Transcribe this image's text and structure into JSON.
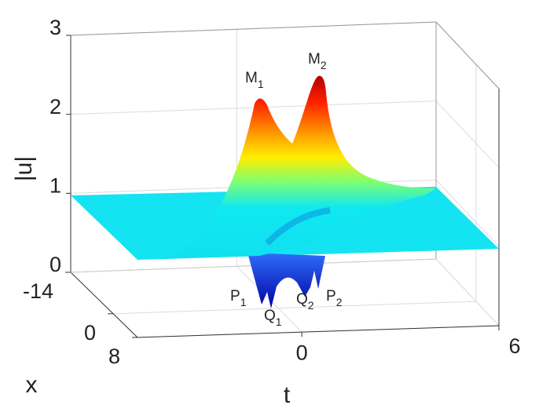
{
  "chart_data": {
    "type": "surface",
    "zlabel": "|u|",
    "xlabel": "x",
    "tlabel": "t",
    "zlim": [
      0,
      3
    ],
    "zticks": [
      0,
      1,
      2,
      3
    ],
    "xlim": [
      -14,
      8
    ],
    "xticks": [
      -14,
      0,
      8
    ],
    "tlim": [
      -5,
      6
    ],
    "tticks": [
      0,
      6
    ],
    "grid": true,
    "annotations": [
      {
        "text": "M",
        "subscript": "1"
      },
      {
        "text": "M",
        "subscript": "2"
      },
      {
        "text": "P",
        "subscript": "1"
      },
      {
        "text": "Q",
        "subscript": "1"
      },
      {
        "text": "Q",
        "subscript": "2"
      },
      {
        "text": "P",
        "subscript": "2"
      }
    ]
  }
}
